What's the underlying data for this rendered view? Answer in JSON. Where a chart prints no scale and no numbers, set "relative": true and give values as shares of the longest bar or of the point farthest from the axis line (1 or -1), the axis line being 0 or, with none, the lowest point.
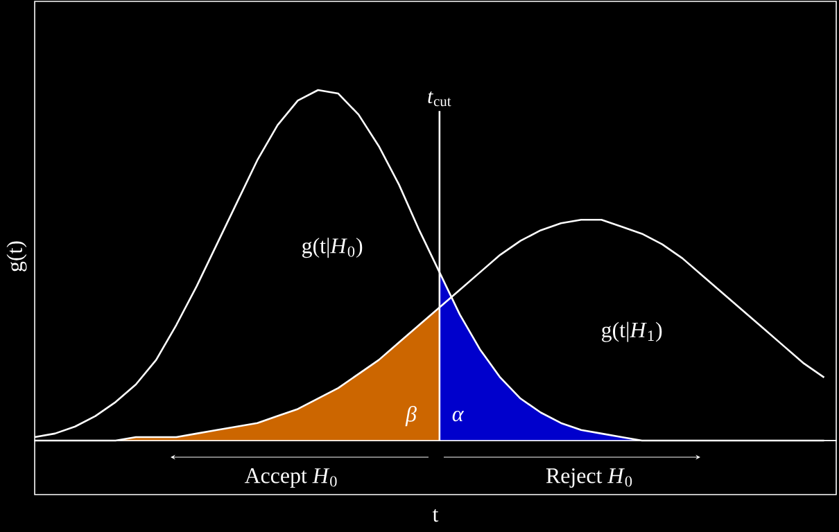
{
  "chart_data": {
    "type": "line",
    "relative": true,
    "xlabel": "t",
    "ylabel": "g(t)",
    "categories": [
      null,
      null,
      null,
      null,
      null,
      null,
      null,
      null,
      null,
      null,
      null,
      null,
      null,
      null,
      null,
      null,
      null,
      null,
      null,
      null,
      null,
      null,
      null,
      null,
      null,
      null,
      null,
      null,
      null,
      null,
      null,
      null,
      null,
      null,
      null,
      null,
      null,
      null,
      null,
      null
    ],
    "series": [
      {
        "name": "g(t|*H*$_{0}$)",
        "color": "#ffffff",
        "values": [
          0.01,
          0.02,
          0.04,
          0.07,
          0.11,
          0.16,
          0.23,
          0.33,
          0.44,
          0.56,
          0.68,
          0.8,
          0.9,
          0.97,
          1.0,
          0.99,
          0.93,
          0.84,
          0.73,
          0.6,
          0.48,
          0.36,
          0.26,
          0.18,
          0.12,
          0.08,
          0.05,
          0.03,
          0.02,
          0.01,
          0,
          0,
          0,
          0,
          0,
          0,
          0,
          0,
          0,
          0
        ]
      },
      {
        "name": "g(t|*H*$_{1}$)",
        "color": "#ffffff",
        "values": [
          0,
          0,
          0,
          0,
          0,
          0.01,
          0.01,
          0.01,
          0.02,
          0.03,
          0.04,
          0.05,
          0.07,
          0.09,
          0.12,
          0.15,
          0.19,
          0.23,
          0.28,
          0.33,
          0.38,
          0.43,
          0.48,
          0.53,
          0.57,
          0.6,
          0.62,
          0.63,
          0.63,
          0.61,
          0.59,
          0.56,
          0.52,
          0.47,
          0.42,
          0.37,
          0.32,
          0.27,
          0.22,
          0.18
        ]
      },
      {
        "type": "area",
        "color": "#cc6600",
        "values": [
          0,
          0,
          0,
          0,
          0,
          0.01,
          0.01,
          0.01,
          0.02,
          0.03,
          0.04,
          0.05,
          0.07,
          0.09,
          0.12,
          0.15,
          0.19,
          0.23,
          0.28,
          0.33,
          0.38,
          null,
          null,
          null,
          null,
          null,
          null,
          null,
          null,
          null,
          null,
          null,
          null,
          null,
          null,
          null,
          null,
          null,
          null,
          null
        ]
      },
      {
        "type": "area",
        "color": "#0000cc",
        "values": [
          null,
          null,
          null,
          null,
          null,
          null,
          null,
          null,
          null,
          null,
          null,
          null,
          null,
          null,
          null,
          null,
          null,
          null,
          null,
          null,
          0.48,
          0.36,
          0.26,
          0.18,
          0.12,
          0.08,
          0.05,
          0.03,
          0.02,
          0.01,
          0,
          0,
          0,
          0,
          0,
          0,
          0,
          0,
          0,
          0
        ]
      }
    ],
    "annotations": [
      "β",
      "α",
      "Accept *H*$_{0}$",
      "Reject *H*$_{0}$",
      "*t*$_{cut}$"
    ]
  }
}
